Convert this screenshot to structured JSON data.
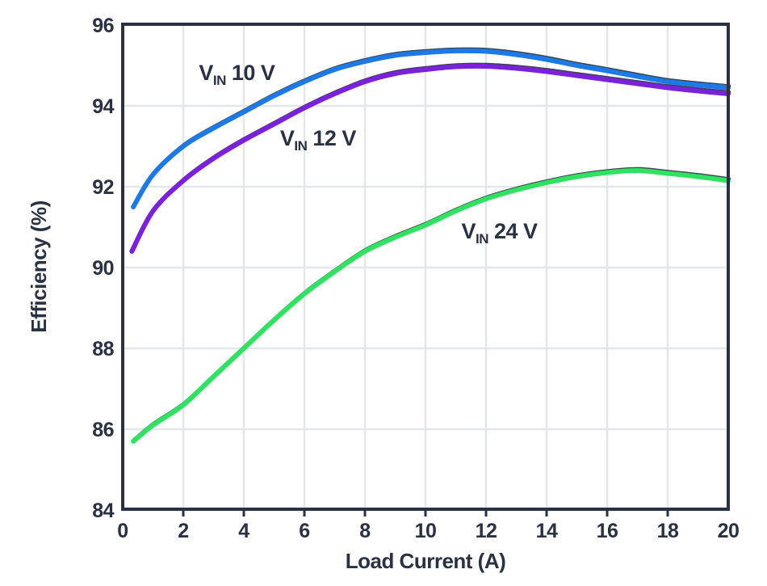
{
  "chart_data": {
    "type": "line",
    "title": "",
    "xlabel": "Load Current (A)",
    "ylabel": "Efficiency (%)",
    "xlim": [
      0,
      20
    ],
    "ylim": [
      84,
      96
    ],
    "xticks": [
      0,
      2,
      4,
      6,
      8,
      10,
      12,
      14,
      16,
      18,
      20
    ],
    "yticks": [
      84,
      86,
      88,
      90,
      92,
      94,
      96
    ],
    "grid": true,
    "legend_position": "inline-annotations",
    "colors": {
      "axis": "#2a3142",
      "gridline": "#e4e7ea",
      "background": "#ffffff",
      "vin10": "#1d79e5",
      "vin12": "#7a21dc",
      "vin24": "#30e261",
      "line_shadow": "#3b4251"
    },
    "series": [
      {
        "name": "VIN 10 V",
        "color_key": "vin10",
        "x": [
          0.35,
          1,
          2,
          3,
          4,
          5,
          6,
          7,
          8,
          9,
          10,
          11,
          12,
          13,
          14,
          15,
          16,
          17,
          18,
          19,
          20
        ],
        "y": [
          91.5,
          92.3,
          93.0,
          93.45,
          93.85,
          94.25,
          94.6,
          94.9,
          95.1,
          95.25,
          95.32,
          95.36,
          95.35,
          95.27,
          95.15,
          95.0,
          94.87,
          94.73,
          94.6,
          94.52,
          94.45
        ]
      },
      {
        "name": "VIN 12 V",
        "color_key": "vin12",
        "x": [
          0.3,
          1,
          2,
          3,
          4,
          5,
          6,
          7,
          8,
          9,
          10,
          11,
          12,
          13,
          14,
          15,
          16,
          17,
          18,
          19,
          20
        ],
        "y": [
          90.4,
          91.4,
          92.15,
          92.7,
          93.15,
          93.55,
          93.95,
          94.3,
          94.6,
          94.8,
          94.9,
          94.97,
          94.98,
          94.93,
          94.85,
          94.75,
          94.65,
          94.55,
          94.45,
          94.37,
          94.3
        ]
      },
      {
        "name": "VIN 24 V",
        "color_key": "vin24",
        "x": [
          0.35,
          1,
          2,
          3,
          4,
          5,
          6,
          7,
          8,
          9,
          10,
          11,
          12,
          13,
          14,
          15,
          16,
          17,
          18,
          19,
          20
        ],
        "y": [
          85.7,
          86.1,
          86.6,
          87.3,
          88.0,
          88.7,
          89.35,
          89.9,
          90.4,
          90.75,
          91.05,
          91.4,
          91.7,
          91.92,
          92.1,
          92.25,
          92.35,
          92.4,
          92.33,
          92.25,
          92.15
        ]
      }
    ],
    "annotations": [
      {
        "id": "vin10",
        "v": "V",
        "sub": "IN",
        "rest": " 10 V",
        "x": 3.77,
        "y": 94.64
      },
      {
        "id": "vin12",
        "v": "V",
        "sub": "IN",
        "rest": " 12 V",
        "x": 6.45,
        "y": 93.02
      },
      {
        "id": "vin24",
        "v": "V",
        "sub": "IN",
        "rest": " 24 V",
        "x": 12.44,
        "y": 90.72
      }
    ]
  }
}
